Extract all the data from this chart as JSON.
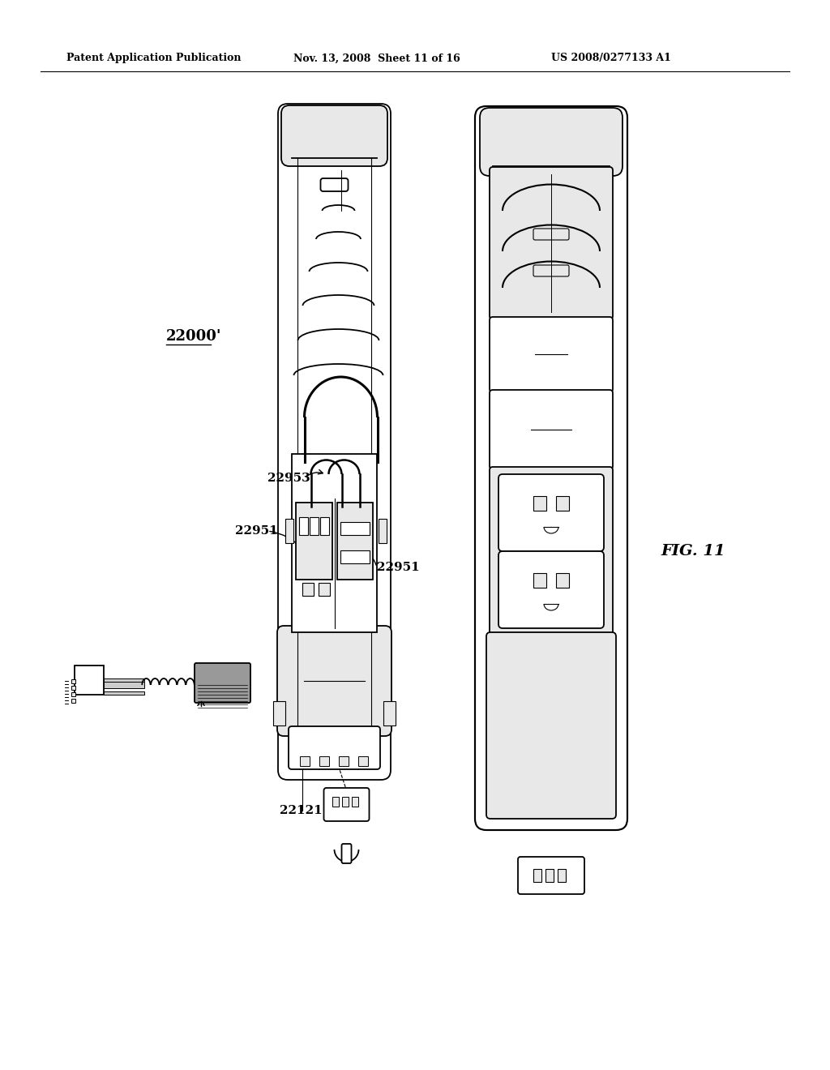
{
  "title_left": "Patent Application Publication",
  "title_mid": "Nov. 13, 2008  Sheet 11 of 16",
  "title_right": "US 2008/0277133 A1",
  "fig_label": "FIG. 11",
  "ref_22000": "22000'",
  "ref_22953": "22953",
  "ref_22951a": "22951",
  "ref_22951b": "22951",
  "ref_22121": "22121",
  "bg_color": "#ffffff",
  "line_color": "#000000",
  "gray_light": "#e8e8e8",
  "gray_mid": "#cccccc",
  "gray_dark": "#999999"
}
